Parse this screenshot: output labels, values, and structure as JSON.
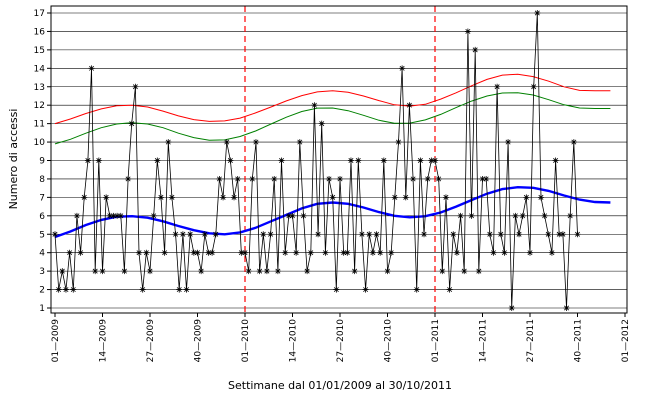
{
  "chart_data": {
    "type": "line",
    "title": "",
    "xlabel": "Settimane dal 01/01/2009 al 30/10/2011",
    "ylabel": "Numero di accessi",
    "ylim": [
      1,
      17
    ],
    "xlim": [
      1,
      157
    ],
    "yticks": [
      1,
      2,
      3,
      4,
      5,
      6,
      7,
      8,
      9,
      10,
      11,
      12,
      13,
      14,
      15,
      16,
      17
    ],
    "xticks": [
      {
        "x": 1,
        "label": "01—2009"
      },
      {
        "x": 14,
        "label": "14—2009"
      },
      {
        "x": 27,
        "label": "27—2009"
      },
      {
        "x": 40,
        "label": "40—2009"
      },
      {
        "x": 53,
        "label": "01—2010"
      },
      {
        "x": 66,
        "label": "14—2010"
      },
      {
        "x": 79,
        "label": "27—2010"
      },
      {
        "x": 92,
        "label": "40—2010"
      },
      {
        "x": 105,
        "label": "01—2011"
      },
      {
        "x": 118,
        "label": "14—2011"
      },
      {
        "x": 131,
        "label": "27—2011"
      },
      {
        "x": 144,
        "label": "40—2011"
      },
      {
        "x": 157,
        "label": "01—2012"
      }
    ],
    "grid": "horizontal",
    "legend": "none",
    "vlines": [
      53,
      105
    ],
    "series": [
      {
        "color": "#000000",
        "marker": "star",
        "values": [
          5,
          2,
          3,
          2,
          4,
          2,
          6,
          4,
          7,
          9,
          14,
          3,
          9,
          3,
          7,
          6,
          6,
          6,
          6,
          3,
          8,
          11,
          13,
          4,
          2,
          4,
          3,
          6,
          9,
          7,
          4,
          10,
          7,
          5,
          2,
          5,
          2,
          5,
          4,
          4,
          3,
          5,
          4,
          4,
          5,
          8,
          7,
          10,
          9,
          7,
          8,
          4,
          4,
          3,
          8,
          10,
          3,
          5,
          3,
          5,
          8,
          3,
          9,
          4,
          6,
          6,
          4,
          10,
          6,
          3,
          4,
          12,
          5,
          11,
          4,
          8,
          7,
          2,
          8,
          4,
          4,
          9,
          3,
          9,
          5,
          2,
          5,
          4,
          5,
          4,
          9,
          3,
          4,
          7,
          10,
          14,
          7,
          12,
          8,
          2,
          9,
          5,
          8,
          9,
          9,
          8,
          3,
          7,
          2,
          5,
          4,
          6,
          3,
          16,
          6,
          15,
          3,
          8,
          8,
          5,
          4,
          13,
          5,
          4,
          10,
          1,
          6,
          5,
          6,
          7,
          4,
          13,
          17,
          7,
          6,
          5,
          4,
          9,
          5,
          5,
          1,
          6,
          10,
          5
        ]
      },
      {
        "color": "#ff0000",
        "values": [
          11.0,
          11.25,
          11.55,
          11.8,
          11.97,
          12.0,
          11.9,
          11.68,
          11.42,
          11.22,
          11.12,
          11.15,
          11.3,
          11.58,
          11.9,
          12.23,
          12.52,
          12.72,
          12.78,
          12.7,
          12.5,
          12.25,
          12.02,
          11.95,
          12.05,
          12.33,
          12.67,
          13.05,
          13.4,
          13.63,
          13.68,
          13.55,
          13.3,
          13.0,
          12.8,
          12.78,
          12.78
        ]
      },
      {
        "color": "#008000",
        "values": [
          9.9,
          10.15,
          10.48,
          10.78,
          10.98,
          11.05,
          10.98,
          10.78,
          10.48,
          10.24,
          10.1,
          10.12,
          10.3,
          10.6,
          10.98,
          11.35,
          11.66,
          11.84,
          11.85,
          11.7,
          11.45,
          11.18,
          11.02,
          11.03,
          11.2,
          11.5,
          11.87,
          12.22,
          12.5,
          12.66,
          12.68,
          12.55,
          12.3,
          12.02,
          11.85,
          11.82,
          11.82
        ]
      },
      {
        "color": "#0000ff",
        "values": [
          4.85,
          5.15,
          5.5,
          5.78,
          5.95,
          5.98,
          5.9,
          5.7,
          5.45,
          5.22,
          5.05,
          5.0,
          5.1,
          5.35,
          5.7,
          6.05,
          6.4,
          6.65,
          6.72,
          6.65,
          6.45,
          6.2,
          6.0,
          5.92,
          5.98,
          6.18,
          6.5,
          6.85,
          7.2,
          7.45,
          7.55,
          7.52,
          7.35,
          7.1,
          6.88,
          6.75,
          6.72
        ]
      }
    ]
  }
}
